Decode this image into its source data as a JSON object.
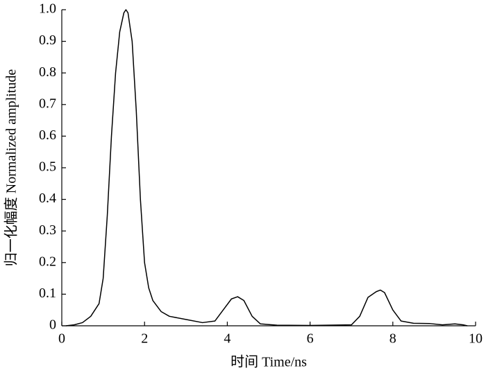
{
  "chart_data": {
    "type": "line",
    "x_label": "时间 Time/ns",
    "y_label": "归一化幅度 Normalized amplitude",
    "xlim": [
      0,
      10
    ],
    "xticks": [
      0,
      2,
      4,
      6,
      8,
      10
    ],
    "ylim": [
      0,
      1
    ],
    "yticks": [
      0,
      0.1,
      0.2,
      0.3,
      0.4,
      0.5,
      0.6,
      0.7,
      0.8,
      0.9,
      {
        "value": 1,
        "label": "1.0"
      }
    ],
    "series": [
      {
        "color": "#000000",
        "x": [
          0.1,
          0.3,
          0.5,
          0.7,
          0.9,
          1.0,
          1.1,
          1.2,
          1.3,
          1.4,
          1.5,
          1.55,
          1.6,
          1.7,
          1.8,
          1.9,
          2.0,
          2.1,
          2.2,
          2.4,
          2.6,
          3.0,
          3.4,
          3.7,
          3.9,
          4.1,
          4.25,
          4.4,
          4.6,
          4.8,
          5.2,
          6.0,
          7.0,
          7.2,
          7.4,
          7.6,
          7.7,
          7.8,
          8.0,
          8.2,
          8.5,
          8.9,
          9.2,
          9.5,
          9.7,
          9.8
        ],
        "values": [
          0,
          0.003,
          0.01,
          0.03,
          0.07,
          0.15,
          0.35,
          0.6,
          0.8,
          0.93,
          0.99,
          1.0,
          0.99,
          0.9,
          0.68,
          0.4,
          0.2,
          0.12,
          0.08,
          0.045,
          0.03,
          0.02,
          0.01,
          0.015,
          0.05,
          0.085,
          0.092,
          0.08,
          0.03,
          0.006,
          0.002,
          0.001,
          0.003,
          0.03,
          0.09,
          0.108,
          0.113,
          0.105,
          0.05,
          0.015,
          0.008,
          0.007,
          0.003,
          0.006,
          0.003,
          0
        ]
      }
    ]
  }
}
